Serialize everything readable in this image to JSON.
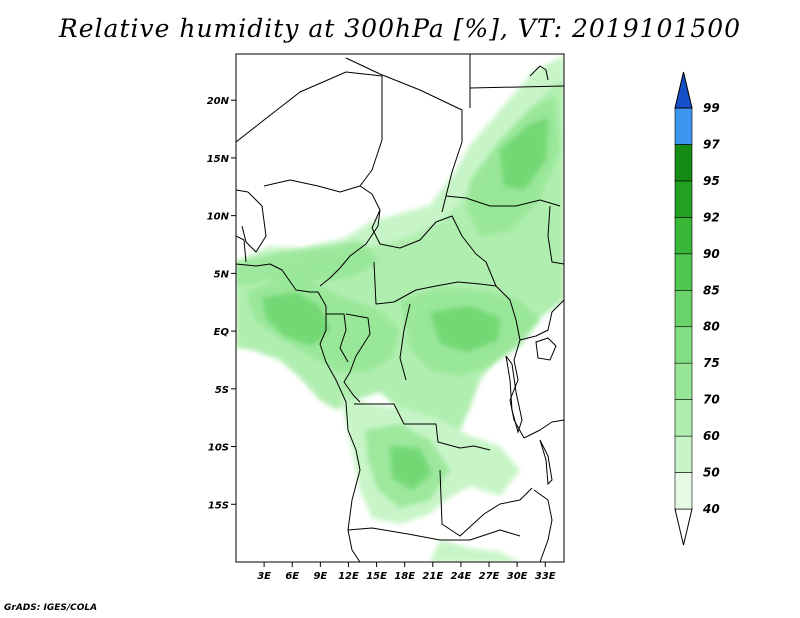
{
  "title": "Relative humidity at 300hPa [%], VT: 2019101500",
  "credit": "GrADS: IGES/COLA",
  "map": {
    "lon_range": [
      0,
      35
    ],
    "lat_range": [
      -20,
      24
    ],
    "x_ticks": [
      {
        "value": 3,
        "label": "3E"
      },
      {
        "value": 6,
        "label": "6E"
      },
      {
        "value": 9,
        "label": "9E"
      },
      {
        "value": 12,
        "label": "12E"
      },
      {
        "value": 15,
        "label": "15E"
      },
      {
        "value": 18,
        "label": "18E"
      },
      {
        "value": 21,
        "label": "21E"
      },
      {
        "value": 24,
        "label": "24E"
      },
      {
        "value": 27,
        "label": "27E"
      },
      {
        "value": 30,
        "label": "30E"
      },
      {
        "value": 33,
        "label": "33E"
      }
    ],
    "y_ticks": [
      {
        "value": 20,
        "label": "20N"
      },
      {
        "value": 15,
        "label": "15N"
      },
      {
        "value": 10,
        "label": "10N"
      },
      {
        "value": 5,
        "label": "5N"
      },
      {
        "value": 0,
        "label": "EQ"
      },
      {
        "value": -5,
        "label": "5S"
      },
      {
        "value": -10,
        "label": "10S"
      },
      {
        "value": -15,
        "label": "15S"
      }
    ]
  },
  "colorbar": {
    "levels": [
      {
        "label": "40",
        "color": "#e6fbe6"
      },
      {
        "label": "50",
        "color": "#c8f5c8"
      },
      {
        "label": "60",
        "color": "#b0eeb0"
      },
      {
        "label": "70",
        "color": "#96e696"
      },
      {
        "label": "75",
        "color": "#82de82"
      },
      {
        "label": "80",
        "color": "#6ad46a"
      },
      {
        "label": "85",
        "color": "#50c850"
      },
      {
        "label": "90",
        "color": "#38b638"
      },
      {
        "label": "92",
        "color": "#22a022"
      },
      {
        "label": "95",
        "color": "#148c14"
      },
      {
        "label": "97",
        "color": "#3c96f0"
      },
      {
        "label": "99",
        "color": "#1e6ee6"
      }
    ],
    "over_color": "#1450c8"
  }
}
